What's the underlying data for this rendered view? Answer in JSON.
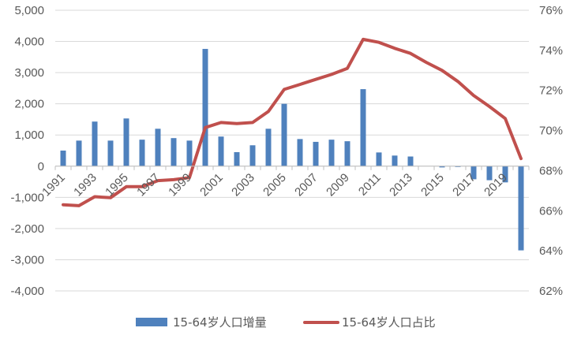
{
  "chart_data": {
    "type": "bar+line",
    "categories": [
      "1991",
      "1992",
      "1993",
      "1994",
      "1995",
      "1996",
      "1997",
      "1998",
      "1999",
      "2000",
      "2001",
      "2002",
      "2003",
      "2004",
      "2005",
      "2006",
      "2007",
      "2008",
      "2009",
      "2010",
      "2011",
      "2012",
      "2013",
      "2014",
      "2015",
      "2016",
      "2017",
      "2018",
      "2019",
      "2020"
    ],
    "x_tick_labels": [
      "1991",
      "1993",
      "1995",
      "1997",
      "1999",
      "2001",
      "2003",
      "2005",
      "2007",
      "2009",
      "2011",
      "2013",
      "2015",
      "2017",
      "2019"
    ],
    "series": [
      {
        "name": "15-64岁人口增量",
        "type": "bar",
        "axis": "left",
        "color": "#4F81BD",
        "values": [
          500,
          820,
          1430,
          820,
          1530,
          850,
          1200,
          900,
          820,
          3760,
          950,
          450,
          670,
          1200,
          2000,
          870,
          780,
          850,
          800,
          2470,
          440,
          340,
          310,
          0,
          -40,
          -20,
          -420,
          -450,
          -520,
          -2700
        ]
      },
      {
        "name": "15-64岁人口占比",
        "type": "line",
        "axis": "right",
        "color": "#C0504D",
        "values": [
          66.3,
          66.25,
          66.7,
          66.65,
          67.2,
          67.2,
          67.5,
          67.55,
          67.65,
          70.15,
          70.4,
          70.35,
          70.4,
          70.95,
          72.05,
          72.3,
          72.55,
          72.8,
          73.1,
          74.55,
          74.4,
          74.1,
          73.85,
          73.4,
          73.0,
          72.45,
          71.75,
          71.2,
          70.6,
          68.6
        ]
      }
    ],
    "y_left": {
      "min": -4000,
      "max": 5000,
      "step": 1000,
      "tick_labels": [
        "-4,000",
        "-3,000",
        "-2,000",
        "-1,000",
        "0",
        "1,000",
        "2,000",
        "3,000",
        "4,000",
        "5,000"
      ]
    },
    "y_right": {
      "min": 62,
      "max": 76,
      "step": 2,
      "tick_labels": [
        "62%",
        "64%",
        "66%",
        "68%",
        "70%",
        "72%",
        "74%",
        "76%"
      ]
    },
    "grid": true,
    "legend_position": "bottom"
  }
}
